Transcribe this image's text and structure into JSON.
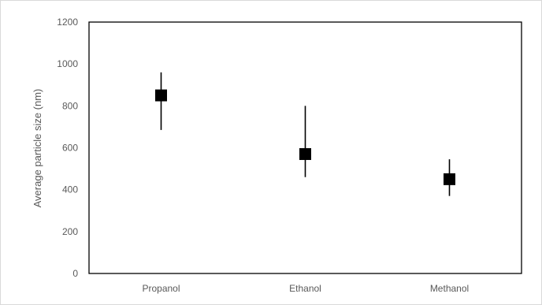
{
  "chart_data": {
    "type": "scatter",
    "title": "",
    "xlabel": "",
    "ylabel": "Average particle size (nm)",
    "categories": [
      "Propanol",
      "Ethanol",
      "Methanol"
    ],
    "y_ticks": [
      "0",
      "200",
      "400",
      "600",
      "800",
      "1000",
      "1200"
    ],
    "ylim": [
      0,
      1200
    ],
    "grid": false,
    "legend": "none",
    "series": [
      {
        "values": [
          850,
          570,
          450
        ],
        "error_low": [
          685,
          460,
          370
        ],
        "error_high": [
          960,
          800,
          545
        ],
        "marker": "square",
        "color": "#000000"
      }
    ]
  }
}
